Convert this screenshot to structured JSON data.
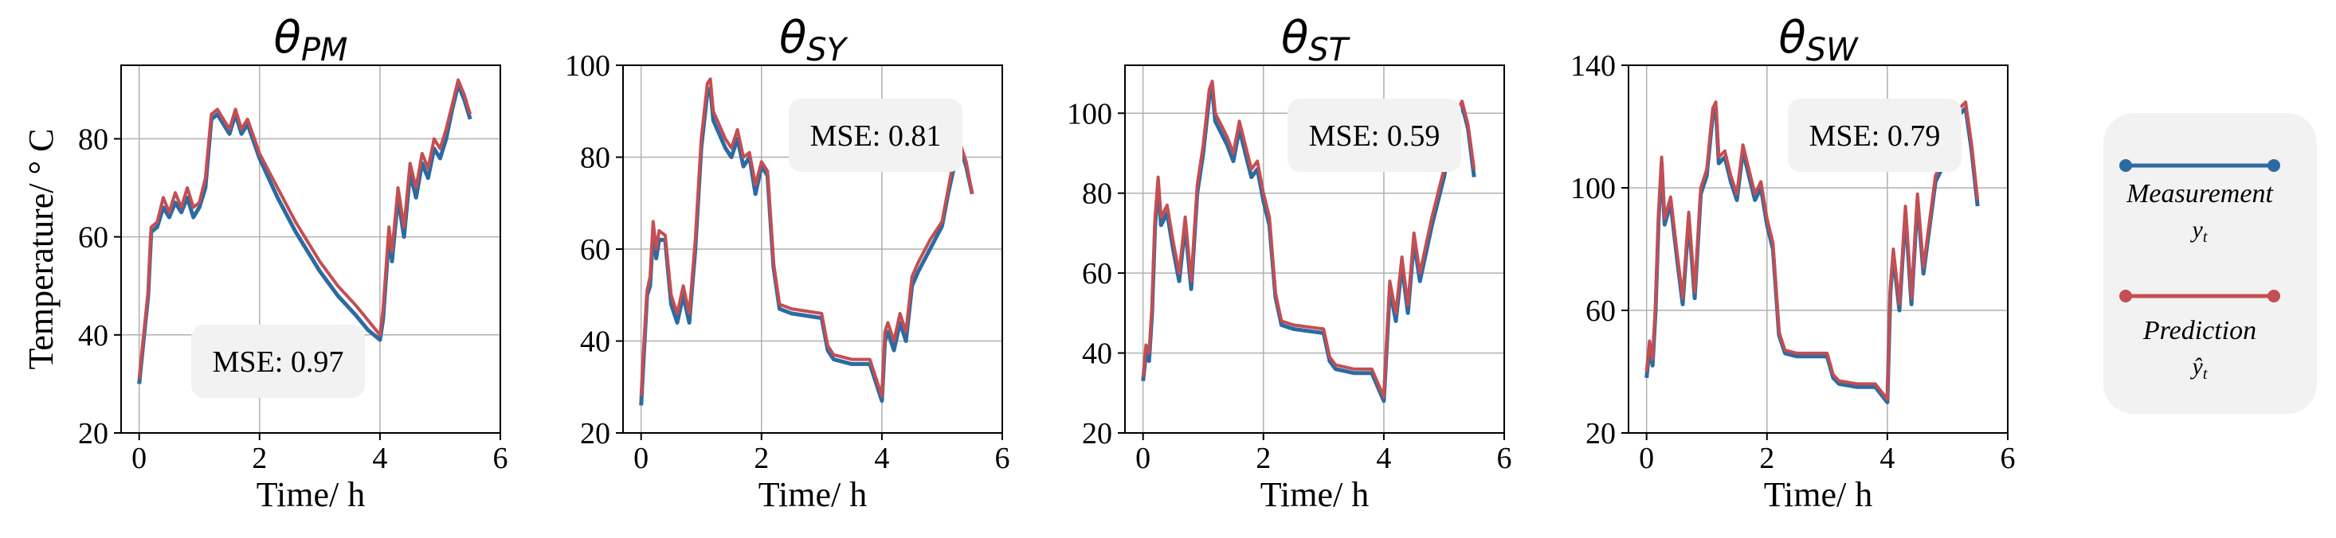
{
  "chart_data": [
    {
      "type": "line",
      "title": "θ",
      "title_sub": "PM",
      "xlabel": "Time/ h",
      "ylabel": "Temperature/ ° C",
      "xlim": [
        -0.3,
        6
      ],
      "ylim": [
        20,
        95
      ],
      "xticks": [
        0,
        2,
        4,
        6
      ],
      "yticks": [
        20,
        40,
        60,
        80
      ],
      "grid": true,
      "mse_label": "MSE: 0.97",
      "series": [
        {
          "role": "measurement",
          "x": [
            0,
            0.05,
            0.15,
            0.2,
            0.3,
            0.4,
            0.5,
            0.6,
            0.7,
            0.8,
            0.9,
            1.0,
            1.1,
            1.2,
            1.3,
            1.4,
            1.5,
            1.6,
            1.7,
            1.8,
            2.0,
            2.3,
            2.6,
            3.0,
            3.3,
            3.6,
            3.8,
            4.0,
            4.05,
            4.15,
            4.2,
            4.3,
            4.4,
            4.5,
            4.6,
            4.7,
            4.8,
            4.9,
            5.0,
            5.1,
            5.2,
            5.3,
            5.4,
            5.5
          ],
          "y": [
            30,
            36,
            48,
            61,
            62,
            66,
            64,
            67,
            65,
            68,
            64,
            66,
            70,
            84,
            85,
            83,
            81,
            85,
            81,
            83,
            76,
            68,
            61,
            53,
            48,
            44,
            41,
            39,
            43,
            60,
            55,
            68,
            60,
            73,
            68,
            75,
            72,
            78,
            76,
            80,
            86,
            91,
            88,
            84
          ]
        },
        {
          "role": "prediction",
          "x": [
            0,
            0.05,
            0.15,
            0.2,
            0.3,
            0.4,
            0.5,
            0.6,
            0.7,
            0.8,
            0.9,
            1.0,
            1.1,
            1.2,
            1.3,
            1.4,
            1.5,
            1.6,
            1.7,
            1.8,
            2.0,
            2.3,
            2.6,
            3.0,
            3.3,
            3.6,
            3.8,
            4.0,
            4.05,
            4.15,
            4.2,
            4.3,
            4.4,
            4.5,
            4.6,
            4.7,
            4.8,
            4.9,
            5.0,
            5.1,
            5.2,
            5.3,
            5.4,
            5.5
          ],
          "y": [
            31,
            37,
            49,
            62,
            63,
            68,
            65,
            69,
            66,
            70,
            66,
            67,
            72,
            85,
            86,
            84,
            82,
            86,
            82,
            84,
            77,
            70,
            63,
            55,
            50,
            46,
            43,
            40,
            45,
            62,
            57,
            70,
            62,
            75,
            70,
            77,
            74,
            80,
            78,
            82,
            87,
            92,
            89,
            85
          ]
        }
      ]
    },
    {
      "type": "line",
      "title": "θ",
      "title_sub": "SY",
      "xlabel": "Time/ h",
      "ylabel": "",
      "xlim": [
        -0.3,
        6
      ],
      "ylim": [
        20,
        100
      ],
      "xticks": [
        0,
        2,
        4,
        6
      ],
      "yticks": [
        20,
        40,
        60,
        80,
        100
      ],
      "grid": true,
      "mse_label": "MSE: 0.81",
      "series": [
        {
          "role": "measurement",
          "x": [
            0,
            0.05,
            0.1,
            0.15,
            0.2,
            0.25,
            0.3,
            0.4,
            0.5,
            0.6,
            0.7,
            0.8,
            0.9,
            1.0,
            1.1,
            1.15,
            1.2,
            1.3,
            1.4,
            1.5,
            1.6,
            1.7,
            1.8,
            1.9,
            2.0,
            2.1,
            2.2,
            2.3,
            2.5,
            3.0,
            3.1,
            3.2,
            3.5,
            3.8,
            4.0,
            4.05,
            4.1,
            4.2,
            4.3,
            4.4,
            4.5,
            4.6,
            4.8,
            5.0,
            5.1,
            5.2,
            5.3,
            5.4,
            5.5
          ],
          "y": [
            26,
            38,
            50,
            52,
            64,
            58,
            62,
            62,
            48,
            44,
            50,
            44,
            60,
            82,
            94,
            95,
            88,
            85,
            82,
            80,
            84,
            78,
            80,
            72,
            78,
            76,
            56,
            47,
            46,
            45,
            38,
            36,
            35,
            35,
            27,
            40,
            42,
            38,
            44,
            40,
            52,
            55,
            60,
            65,
            72,
            78,
            82,
            78,
            72
          ]
        },
        {
          "role": "prediction",
          "x": [
            0,
            0.05,
            0.1,
            0.15,
            0.2,
            0.25,
            0.3,
            0.4,
            0.5,
            0.6,
            0.7,
            0.8,
            0.9,
            1.0,
            1.1,
            1.15,
            1.2,
            1.3,
            1.4,
            1.5,
            1.6,
            1.7,
            1.8,
            1.9,
            2.0,
            2.1,
            2.2,
            2.3,
            2.5,
            3.0,
            3.1,
            3.2,
            3.5,
            3.8,
            4.0,
            4.05,
            4.1,
            4.2,
            4.3,
            4.4,
            4.5,
            4.6,
            4.8,
            5.0,
            5.1,
            5.2,
            5.3,
            5.4,
            5.5
          ],
          "y": [
            28,
            40,
            51,
            54,
            66,
            60,
            64,
            63,
            50,
            46,
            52,
            46,
            62,
            84,
            96,
            97,
            90,
            87,
            84,
            82,
            86,
            80,
            81,
            74,
            79,
            77,
            57,
            48,
            47,
            46,
            39,
            37,
            36,
            36,
            28,
            42,
            44,
            40,
            46,
            42,
            54,
            57,
            62,
            66,
            73,
            80,
            83,
            79,
            72
          ]
        }
      ]
    },
    {
      "type": "line",
      "title": "θ",
      "title_sub": "ST",
      "xlabel": "Time/ h",
      "ylabel": "",
      "xlim": [
        -0.3,
        6
      ],
      "ylim": [
        20,
        112
      ],
      "xticks": [
        0,
        2,
        4,
        6
      ],
      "yticks": [
        20,
        40,
        60,
        80,
        100
      ],
      "grid": true,
      "mse_label": "MSE: 0.59",
      "series": [
        {
          "role": "measurement",
          "x": [
            0,
            0.05,
            0.1,
            0.15,
            0.2,
            0.25,
            0.3,
            0.4,
            0.5,
            0.6,
            0.7,
            0.8,
            0.9,
            1.0,
            1.1,
            1.15,
            1.2,
            1.3,
            1.4,
            1.5,
            1.6,
            1.7,
            1.8,
            1.9,
            2.0,
            2.1,
            2.2,
            2.3,
            2.5,
            3.0,
            3.1,
            3.2,
            3.5,
            3.8,
            4.0,
            4.05,
            4.1,
            4.2,
            4.3,
            4.4,
            4.5,
            4.6,
            4.8,
            5.0,
            5.1,
            5.2,
            5.3,
            5.4,
            5.5
          ],
          "y": [
            33,
            40,
            38,
            50,
            72,
            82,
            72,
            75,
            66,
            58,
            72,
            56,
            80,
            90,
            104,
            106,
            98,
            95,
            92,
            88,
            96,
            90,
            84,
            86,
            78,
            72,
            54,
            47,
            46,
            45,
            38,
            36,
            35,
            35,
            28,
            42,
            56,
            48,
            62,
            50,
            68,
            58,
            72,
            84,
            92,
            98,
            102,
            96,
            84
          ]
        },
        {
          "role": "prediction",
          "x": [
            0,
            0.05,
            0.1,
            0.15,
            0.2,
            0.25,
            0.3,
            0.4,
            0.5,
            0.6,
            0.7,
            0.8,
            0.9,
            1.0,
            1.1,
            1.15,
            1.2,
            1.3,
            1.4,
            1.5,
            1.6,
            1.7,
            1.8,
            1.9,
            2.0,
            2.1,
            2.2,
            2.3,
            2.5,
            3.0,
            3.1,
            3.2,
            3.5,
            3.8,
            4.0,
            4.05,
            4.1,
            4.2,
            4.3,
            4.4,
            4.5,
            4.6,
            4.8,
            5.0,
            5.1,
            5.2,
            5.3,
            5.4,
            5.5
          ],
          "y": [
            34,
            42,
            40,
            52,
            74,
            84,
            74,
            77,
            68,
            60,
            74,
            58,
            82,
            92,
            106,
            108,
            100,
            97,
            94,
            90,
            98,
            92,
            86,
            88,
            80,
            74,
            55,
            48,
            47,
            46,
            39,
            37,
            36,
            36,
            29,
            44,
            58,
            50,
            64,
            52,
            70,
            60,
            74,
            86,
            94,
            100,
            103,
            97,
            86
          ]
        }
      ]
    },
    {
      "type": "line",
      "title": "θ",
      "title_sub": "SW",
      "xlabel": "Time/ h",
      "ylabel": "",
      "xlim": [
        -0.3,
        6
      ],
      "ylim": [
        20,
        140
      ],
      "xticks": [
        0,
        2,
        4,
        6
      ],
      "yticks": [
        20,
        60,
        100,
        140
      ],
      "grid": true,
      "mse_label": "MSE: 0.79",
      "series": [
        {
          "role": "measurement",
          "x": [
            0,
            0.05,
            0.1,
            0.15,
            0.2,
            0.25,
            0.3,
            0.4,
            0.5,
            0.6,
            0.7,
            0.8,
            0.9,
            1.0,
            1.1,
            1.15,
            1.2,
            1.3,
            1.4,
            1.5,
            1.6,
            1.7,
            1.8,
            1.9,
            2.0,
            2.1,
            2.2,
            2.3,
            2.5,
            3.0,
            3.1,
            3.2,
            3.5,
            3.8,
            4.0,
            4.05,
            4.1,
            4.2,
            4.3,
            4.4,
            4.5,
            4.6,
            4.8,
            5.0,
            5.1,
            5.2,
            5.3,
            5.4,
            5.5
          ],
          "y": [
            38,
            48,
            42,
            60,
            90,
            108,
            88,
            95,
            78,
            62,
            90,
            64,
            98,
            104,
            124,
            126,
            108,
            110,
            102,
            96,
            112,
            104,
            96,
            100,
            88,
            80,
            52,
            46,
            45,
            45,
            38,
            36,
            35,
            35,
            30,
            66,
            78,
            60,
            92,
            62,
            96,
            72,
            102,
            110,
            118,
            124,
            126,
            112,
            94
          ]
        },
        {
          "role": "prediction",
          "x": [
            0,
            0.05,
            0.1,
            0.15,
            0.2,
            0.25,
            0.3,
            0.4,
            0.5,
            0.6,
            0.7,
            0.8,
            0.9,
            1.0,
            1.1,
            1.15,
            1.2,
            1.3,
            1.4,
            1.5,
            1.6,
            1.7,
            1.8,
            1.9,
            2.0,
            2.1,
            2.2,
            2.3,
            2.5,
            3.0,
            3.1,
            3.2,
            3.5,
            3.8,
            4.0,
            4.05,
            4.1,
            4.2,
            4.3,
            4.4,
            4.5,
            4.6,
            4.8,
            5.0,
            5.1,
            5.2,
            5.3,
            5.4,
            5.5
          ],
          "y": [
            40,
            50,
            44,
            62,
            92,
            110,
            90,
            97,
            80,
            64,
            92,
            66,
            100,
            106,
            126,
            128,
            110,
            112,
            104,
            98,
            114,
            106,
            98,
            102,
            90,
            82,
            53,
            47,
            46,
            46,
            39,
            37,
            36,
            36,
            31,
            68,
            80,
            62,
            94,
            64,
            98,
            74,
            104,
            112,
            120,
            126,
            128,
            114,
            96
          ]
        }
      ]
    }
  ],
  "legend": {
    "items": [
      {
        "role": "measurement",
        "label": "Measurement",
        "symbol": "y",
        "symbol_sub": "t",
        "color": "#2c6ba2"
      },
      {
        "role": "prediction",
        "label": "Prediction",
        "symbol": "ŷ",
        "symbol_sub": "t",
        "color": "#c44e52"
      }
    ],
    "background": "#f2f2f2"
  },
  "colors": {
    "measurement": "#2c6ba2",
    "prediction": "#c44e52",
    "grid": "#b0b0b0",
    "mse_box": "#f2f2f2"
  }
}
